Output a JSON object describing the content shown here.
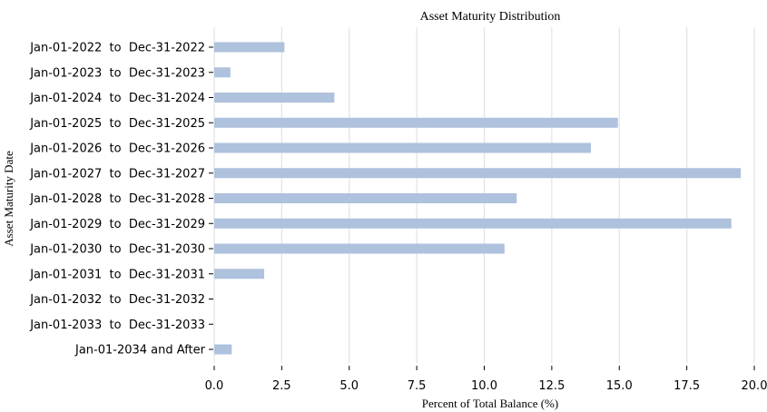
{
  "chart_data": {
    "type": "bar",
    "orientation": "horizontal",
    "title": "Asset Maturity Distribution",
    "xlabel": "Percent of Total Balance (%)",
    "ylabel": "Asset Maturity Date",
    "xlim": [
      0,
      20
    ],
    "xticks": [
      "0.0",
      "2.5",
      "5.0",
      "7.5",
      "10.0",
      "12.5",
      "15.0",
      "17.5",
      "20.0"
    ],
    "grid": "vertical",
    "bar_color": "#aec1dd",
    "categories": [
      "Jan-01-2022  to  Dec-31-2022",
      "Jan-01-2023  to  Dec-31-2023",
      "Jan-01-2024  to  Dec-31-2024",
      "Jan-01-2025  to  Dec-31-2025",
      "Jan-01-2026  to  Dec-31-2026",
      "Jan-01-2027  to  Dec-31-2027",
      "Jan-01-2028  to  Dec-31-2028",
      "Jan-01-2029  to  Dec-31-2029",
      "Jan-01-2030  to  Dec-31-2030",
      "Jan-01-2031  to  Dec-31-2031",
      "Jan-01-2032  to  Dec-31-2032",
      "Jan-01-2033  to  Dec-31-2033",
      "Jan-01-2034 and After"
    ],
    "values": [
      2.6,
      0.6,
      4.45,
      14.95,
      13.95,
      19.5,
      11.2,
      19.15,
      10.75,
      1.85,
      0,
      0,
      0.65
    ]
  }
}
